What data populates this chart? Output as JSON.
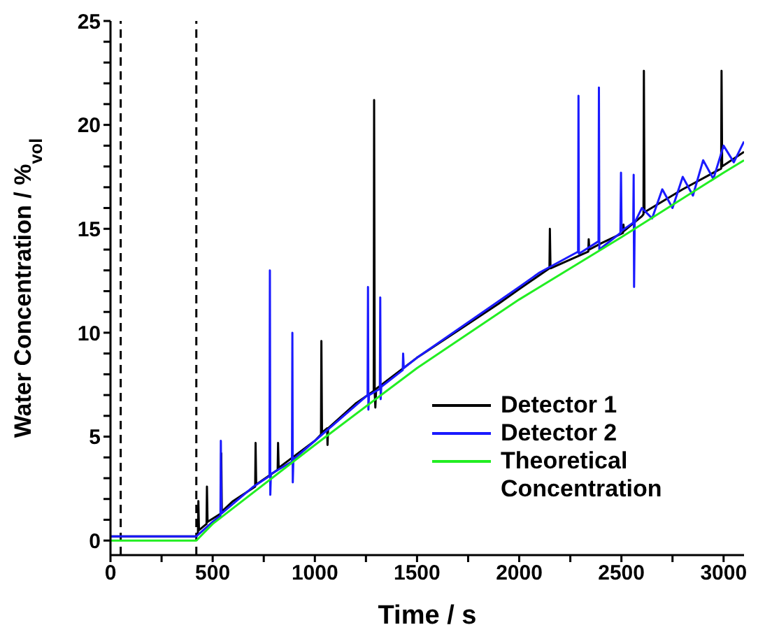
{
  "chart_data": {
    "type": "line",
    "xlabel": "Time / s",
    "ylabel": "Water Concentration / %$_{vol}$",
    "xlim": [
      0,
      3100
    ],
    "ylim": [
      -0.7,
      25
    ],
    "xticks": [
      0,
      {
        "value": 250,
        "label": null
      },
      500,
      {
        "value": 750,
        "label": null
      },
      1000,
      {
        "value": 1250,
        "label": null
      },
      1500,
      {
        "value": 1750,
        "label": null
      },
      2000,
      {
        "value": 2250,
        "label": null
      },
      2500,
      {
        "value": 2750,
        "label": null
      },
      3000
    ],
    "yticks": [
      0,
      {
        "value": 1,
        "label": null
      },
      {
        "value": 2,
        "label": null
      },
      {
        "value": 3,
        "label": null
      },
      {
        "value": 4,
        "label": null
      },
      5,
      {
        "value": 6,
        "label": null
      },
      {
        "value": 7,
        "label": null
      },
      {
        "value": 8,
        "label": null
      },
      {
        "value": 9,
        "label": null
      },
      10,
      {
        "value": 11,
        "label": null
      },
      {
        "value": 12,
        "label": null
      },
      {
        "value": 13,
        "label": null
      },
      {
        "value": 14,
        "label": null
      },
      15,
      {
        "value": 16,
        "label": null
      },
      {
        "value": 17,
        "label": null
      },
      {
        "value": 18,
        "label": null
      },
      {
        "value": 19,
        "label": null
      },
      20,
      {
        "value": 21,
        "label": null
      },
      {
        "value": 22,
        "label": null
      },
      {
        "value": 23,
        "label": null
      },
      {
        "value": 24,
        "label": null
      },
      25
    ],
    "grid": false,
    "legend": "bottom right",
    "marker": "none",
    "line_style": "solid",
    "ref_lines": [
      {
        "axis": "x",
        "value": 50,
        "color": "#000000",
        "line_style": "dashed"
      },
      {
        "axis": "x",
        "value": 420,
        "color": "#000000",
        "line_style": "dashed"
      }
    ],
    "series": [
      {
        "name": "Detector 1",
        "color": "#000000",
        "x": [
          0,
          420,
          428,
          430,
          433,
          470,
          472,
          475,
          540,
          542,
          545,
          600,
          708,
          710,
          713,
          818,
          820,
          823,
          1000,
          1030,
          1032,
          1035,
          1060,
          1062,
          1065,
          1200,
          1288,
          1290,
          1293,
          1296,
          1300,
          1500,
          1700,
          1900,
          2000,
          2148,
          2150,
          2153,
          2338,
          2340,
          2343,
          2400,
          2508,
          2510,
          2513,
          2600,
          2608,
          2610,
          2613,
          2800,
          2988,
          2990,
          2993,
          3100
        ],
        "values": [
          0.2,
          0.2,
          0.4,
          1.9,
          0.5,
          0.8,
          2.6,
          0.9,
          1.3,
          4.2,
          1.4,
          1.9,
          2.6,
          4.7,
          2.7,
          3.4,
          4.7,
          3.5,
          4.8,
          5.1,
          9.6,
          5.2,
          5.4,
          4.6,
          5.4,
          6.6,
          7.2,
          21.2,
          7.1,
          6.4,
          7.3,
          8.8,
          10.1,
          11.4,
          12.1,
          13.1,
          15.0,
          13.1,
          13.9,
          14.5,
          14.0,
          14.3,
          14.8,
          15.2,
          14.9,
          15.6,
          15.7,
          22.6,
          15.8,
          16.9,
          17.9,
          22.6,
          18.0,
          18.7
        ]
      },
      {
        "name": "Detector 2",
        "color": "#1a1aff",
        "x": [
          0,
          420,
          500,
          538,
          540,
          543,
          700,
          778,
          780,
          782,
          785,
          888,
          890,
          892,
          895,
          1000,
          1258,
          1260,
          1262,
          1265,
          1318,
          1320,
          1322,
          1325,
          1430,
          1432,
          1435,
          1500,
          2000,
          2100,
          2288,
          2290,
          2292,
          2388,
          2390,
          2392,
          2495,
          2498,
          2501,
          2558,
          2560,
          2562,
          2565,
          2600,
          2650,
          2700,
          2750,
          2800,
          2850,
          2900,
          2950,
          3000,
          3050,
          3100
        ],
        "values": [
          0.2,
          0.2,
          0.9,
          1.2,
          4.8,
          1.3,
          2.6,
          3.1,
          13.0,
          2.2,
          3.2,
          3.8,
          10.0,
          2.8,
          3.9,
          4.8,
          7.0,
          12.2,
          6.3,
          7.0,
          7.3,
          11.7,
          6.8,
          7.4,
          8.2,
          9.0,
          8.3,
          8.8,
          12.2,
          12.9,
          13.9,
          21.4,
          13.8,
          14.4,
          21.8,
          14.0,
          14.8,
          17.7,
          14.9,
          15.3,
          17.6,
          12.2,
          15.3,
          16.0,
          15.5,
          16.9,
          16.0,
          17.5,
          16.6,
          18.3,
          17.4,
          19.0,
          18.2,
          19.2
        ]
      },
      {
        "name": "Theoretical Concentration",
        "color": "#22ee22",
        "x": [
          0,
          420,
          500,
          1000,
          1500,
          2000,
          2500,
          3000,
          3100
        ],
        "values": [
          0,
          0,
          0.8,
          4.6,
          8.3,
          11.6,
          14.6,
          17.7,
          18.3
        ]
      }
    ]
  }
}
